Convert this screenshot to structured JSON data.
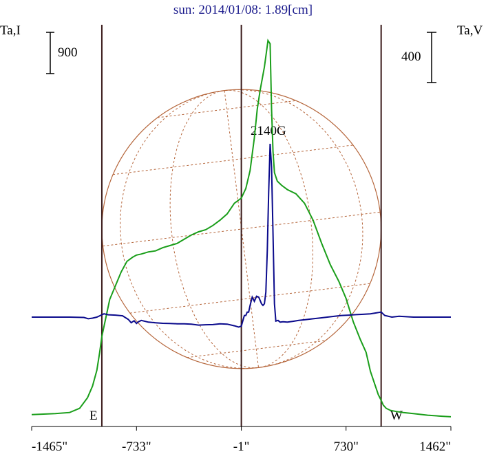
{
  "chart_data": {
    "type": "line",
    "title": "sun: 2014/01/08: 1.89[cm]",
    "left_axis_label": "Ta,I",
    "right_axis_label": "Ta,V",
    "scale_bars": {
      "left_value": "900",
      "right_value": "400"
    },
    "annotation": "2140G",
    "limb_labels": {
      "east": "E",
      "west": "W"
    },
    "x_tick_labels": [
      "-1465\"",
      "-733\"",
      "-1\"",
      "730\"",
      "1462\""
    ],
    "x_ticks": [
      -1465,
      -733,
      -1,
      730,
      1462
    ],
    "xlim": [
      -1465,
      1462
    ],
    "vertical_lines_at": [
      -975,
      -1,
      975
    ],
    "sun_disk_radius_arcsec": 975,
    "colors": {
      "intensity": "#1a9e1a",
      "polarization": "#0a0a8c",
      "disk": "#b5653a",
      "limb_lines": "#3a1a1a",
      "title": "#1a1a8c"
    },
    "series": [
      {
        "id": "intensity",
        "axis": "left",
        "x": [
          -1465,
          -1300,
          -1200,
          -1130,
          -1075,
          -1040,
          -1010,
          -990,
          -975,
          -950,
          -920,
          -880,
          -840,
          -800,
          -760,
          -733,
          -700,
          -650,
          -600,
          -550,
          -500,
          -450,
          -400,
          -350,
          -300,
          -250,
          -200,
          -150,
          -100,
          -50,
          -1,
          30,
          60,
          90,
          110,
          130,
          160,
          185,
          200,
          210,
          220,
          230,
          250,
          280,
          320,
          380,
          440,
          500,
          560,
          620,
          680,
          730,
          780,
          830,
          870,
          900,
          930,
          955,
          975,
          990,
          1010,
          1040,
          1080,
          1130,
          1200,
          1300,
          1400,
          1462
        ],
        "y": [
          60,
          70,
          80,
          120,
          220,
          330,
          480,
          650,
          800,
          960,
          1150,
          1280,
          1410,
          1510,
          1550,
          1570,
          1580,
          1600,
          1610,
          1640,
          1660,
          1680,
          1720,
          1760,
          1790,
          1810,
          1850,
          1900,
          1960,
          2060,
          2110,
          2200,
          2370,
          2680,
          2950,
          3130,
          3350,
          3600,
          3570,
          2950,
          2550,
          2350,
          2270,
          2230,
          2190,
          2150,
          2060,
          1900,
          1680,
          1480,
          1320,
          1160,
          940,
          770,
          650,
          470,
          350,
          250,
          195,
          150,
          120,
          100,
          90,
          80,
          70,
          55,
          45,
          40
        ]
      },
      {
        "id": "polarization",
        "axis": "right",
        "x": [
          -1465,
          -1200,
          -1100,
          -1070,
          -1040,
          -1010,
          -990,
          -975,
          -960,
          -930,
          -880,
          -830,
          -790,
          -770,
          -750,
          -733,
          -720,
          -700,
          -650,
          -600,
          -550,
          -500,
          -450,
          -400,
          -350,
          -300,
          -250,
          -200,
          -150,
          -100,
          -50,
          -20,
          -1,
          10,
          20,
          30,
          40,
          50,
          60,
          75,
          90,
          105,
          120,
          130,
          140,
          150,
          160,
          170,
          180,
          190,
          200,
          210,
          220,
          230,
          240,
          255,
          270,
          290,
          320,
          360,
          400,
          450,
          500,
          550,
          600,
          650,
          700,
          750,
          800,
          850,
          900,
          940,
          960,
          975,
          1000,
          1050,
          1100,
          1200,
          1300,
          1400,
          1462
        ],
        "y": [
          0,
          0,
          -2,
          -10,
          -6,
          0,
          8,
          14,
          20,
          14,
          12,
          8,
          -14,
          -34,
          -22,
          -38,
          -28,
          -20,
          -30,
          -34,
          -37,
          -38,
          -40,
          -40,
          -42,
          -48,
          -46,
          -45,
          -40,
          -42,
          -52,
          -60,
          -54,
          -20,
          10,
          10,
          30,
          30,
          70,
          120,
          95,
          125,
          120,
          100,
          80,
          70,
          80,
          150,
          400,
          750,
          1040,
          900,
          500,
          80,
          -24,
          -20,
          -30,
          -28,
          -30,
          -25,
          -20,
          -15,
          -10,
          -5,
          0,
          5,
          10,
          12,
          15,
          17,
          20,
          25,
          28,
          30,
          10,
          0,
          5,
          0,
          0,
          0,
          0
        ]
      }
    ]
  }
}
